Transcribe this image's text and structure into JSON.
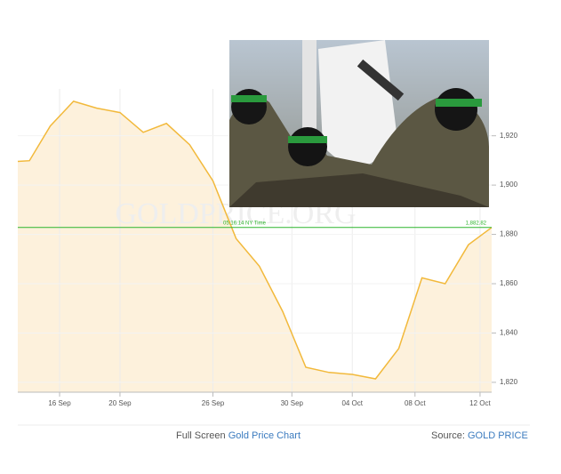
{
  "chart_data": {
    "type": "area",
    "watermark": "GOLDPRICE.ORG",
    "x": [
      0,
      0.5,
      1.4,
      2.4,
      3.4,
      4.4,
      5.4,
      6.4,
      7.4,
      8.4,
      9.4,
      10.4,
      11.4,
      12.4,
      13.4,
      14.4,
      15.4,
      16.4,
      17.4,
      18.4,
      19.4,
      20.4
    ],
    "values": [
      1909.6,
      1909.9,
      1924,
      1934,
      1931.2,
      1929.4,
      1921.4,
      1925,
      1916.4,
      1901.7,
      1878.3,
      1867.1,
      1848.8,
      1826.1,
      1824,
      1823.2,
      1821.4,
      1833.7,
      1862.4,
      1860,
      1875.8,
      1882.82
    ],
    "color": "#f2b93b",
    "fill": "#fdf1dc",
    "xlim": [
      0,
      20.4
    ],
    "xticks": [
      {
        "value": 1.8,
        "label": "16 Sep"
      },
      {
        "value": 4.4,
        "label": "20 Sep"
      },
      {
        "value": 8.4,
        "label": "26 Sep"
      },
      {
        "value": 11.8,
        "label": "30 Sep"
      },
      {
        "value": 14.4,
        "label": "04 Oct"
      },
      {
        "value": 17.1,
        "label": "08 Oct"
      },
      {
        "value": 19.9,
        "label": "12 Oct"
      }
    ],
    "ylim": [
      1816,
      1939
    ],
    "yticks": [
      {
        "value": 1820,
        "label": "1,820"
      },
      {
        "value": 1840,
        "label": "1,840"
      },
      {
        "value": 1860,
        "label": "1,860"
      },
      {
        "value": 1880,
        "label": "1,880"
      },
      {
        "value": 1900,
        "label": "1,900"
      },
      {
        "value": 1920,
        "label": "1,920"
      }
    ],
    "grid": true,
    "current": {
      "value": 1882.82,
      "label": "1,882.82",
      "time": "05:16:14 NY Time",
      "color": "#2db52d"
    },
    "footer": {
      "left_prefix": "Full Screen",
      "left_link": "Gold Price Chart",
      "right_prefix": "Source:",
      "right_link": "GOLD PRICE"
    }
  }
}
